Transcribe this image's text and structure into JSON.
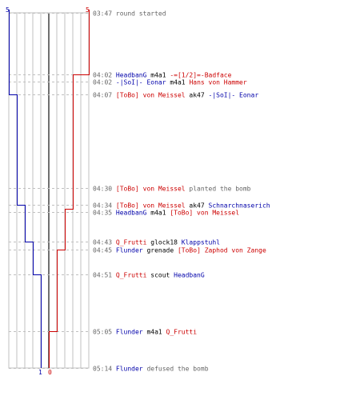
{
  "colors": {
    "blue": "#0000aa",
    "red": "#cc0000",
    "text": "#000000",
    "muted": "#666666",
    "grid": "#c0c0c0",
    "center": "#707070"
  },
  "timeline": {
    "start_count": {
      "blue": "5",
      "red": "5"
    },
    "end_count": {
      "blue": "1",
      "red": "0"
    }
  },
  "chart_data": {
    "type": "line",
    "x_label": "",
    "y_label": "",
    "max_players": 5,
    "series": [
      {
        "team": "blue",
        "steps": [
          {
            "time": "03:47",
            "alive": 5
          },
          {
            "time": "04:07",
            "alive": 4
          },
          {
            "time": "04:34",
            "alive": 3
          },
          {
            "time": "04:43",
            "alive": 2
          },
          {
            "time": "04:51",
            "alive": 1
          }
        ]
      },
      {
        "team": "red",
        "steps": [
          {
            "time": "03:47",
            "alive": 5
          },
          {
            "time": "04:02",
            "alive": 4
          },
          {
            "time": "04:02",
            "alive": 3
          },
          {
            "time": "04:35",
            "alive": 2
          },
          {
            "time": "04:45",
            "alive": 1
          },
          {
            "time": "05:05",
            "alive": 0
          }
        ]
      }
    ]
  },
  "events": [
    {
      "time": "03:47",
      "parts": [
        {
          "text": "round started",
          "c": "muted"
        }
      ]
    },
    {
      "time": "04:02",
      "parts": [
        {
          "text": "HeadbanG",
          "c": "blue"
        },
        {
          "text": " m4a1 ",
          "c": "text"
        },
        {
          "text": "-=[1/2]=-Badface",
          "c": "red"
        }
      ]
    },
    {
      "time": "04:02",
      "parts": [
        {
          "text": "-|SoI|- Eonar",
          "c": "blue"
        },
        {
          "text": " m4a1 ",
          "c": "text"
        },
        {
          "text": "Hans von Hammer",
          "c": "red"
        }
      ]
    },
    {
      "time": "04:07",
      "parts": [
        {
          "text": "[ToBo] von Meissel",
          "c": "red"
        },
        {
          "text": " ak47 ",
          "c": "text"
        },
        {
          "text": "-|SoI|- Eonar",
          "c": "blue"
        }
      ]
    },
    {
      "time": "04:30",
      "parts": [
        {
          "text": "[ToBo] von Meissel",
          "c": "red"
        },
        {
          "text": " planted the bomb",
          "c": "muted"
        }
      ]
    },
    {
      "time": "04:34",
      "parts": [
        {
          "text": "[ToBo] von Meissel",
          "c": "red"
        },
        {
          "text": " ak47 ",
          "c": "text"
        },
        {
          "text": "Schnarchnaserich",
          "c": "blue"
        }
      ]
    },
    {
      "time": "04:35",
      "parts": [
        {
          "text": "HeadbanG",
          "c": "blue"
        },
        {
          "text": " m4a1 ",
          "c": "text"
        },
        {
          "text": "[ToBo] von Meissel",
          "c": "red"
        }
      ]
    },
    {
      "time": "04:43",
      "parts": [
        {
          "text": "Q_Frutti",
          "c": "red"
        },
        {
          "text": " glock18 ",
          "c": "text"
        },
        {
          "text": "Klappstuhl",
          "c": "blue"
        }
      ]
    },
    {
      "time": "04:45",
      "parts": [
        {
          "text": "Flunder",
          "c": "blue"
        },
        {
          "text": " grenade ",
          "c": "text"
        },
        {
          "text": "[ToBo] Zaphod von Zange",
          "c": "red"
        }
      ]
    },
    {
      "time": "04:51",
      "parts": [
        {
          "text": "Q_Frutti",
          "c": "red"
        },
        {
          "text": " scout ",
          "c": "text"
        },
        {
          "text": "HeadbanG",
          "c": "blue"
        }
      ]
    },
    {
      "time": "05:05",
      "parts": [
        {
          "text": "Flunder",
          "c": "blue"
        },
        {
          "text": " m4a1 ",
          "c": "text"
        },
        {
          "text": "Q_Frutti",
          "c": "red"
        }
      ]
    },
    {
      "time": "05:14",
      "parts": [
        {
          "text": "Flunder",
          "c": "blue"
        },
        {
          "text": " defused the bomb",
          "c": "muted"
        }
      ]
    }
  ]
}
